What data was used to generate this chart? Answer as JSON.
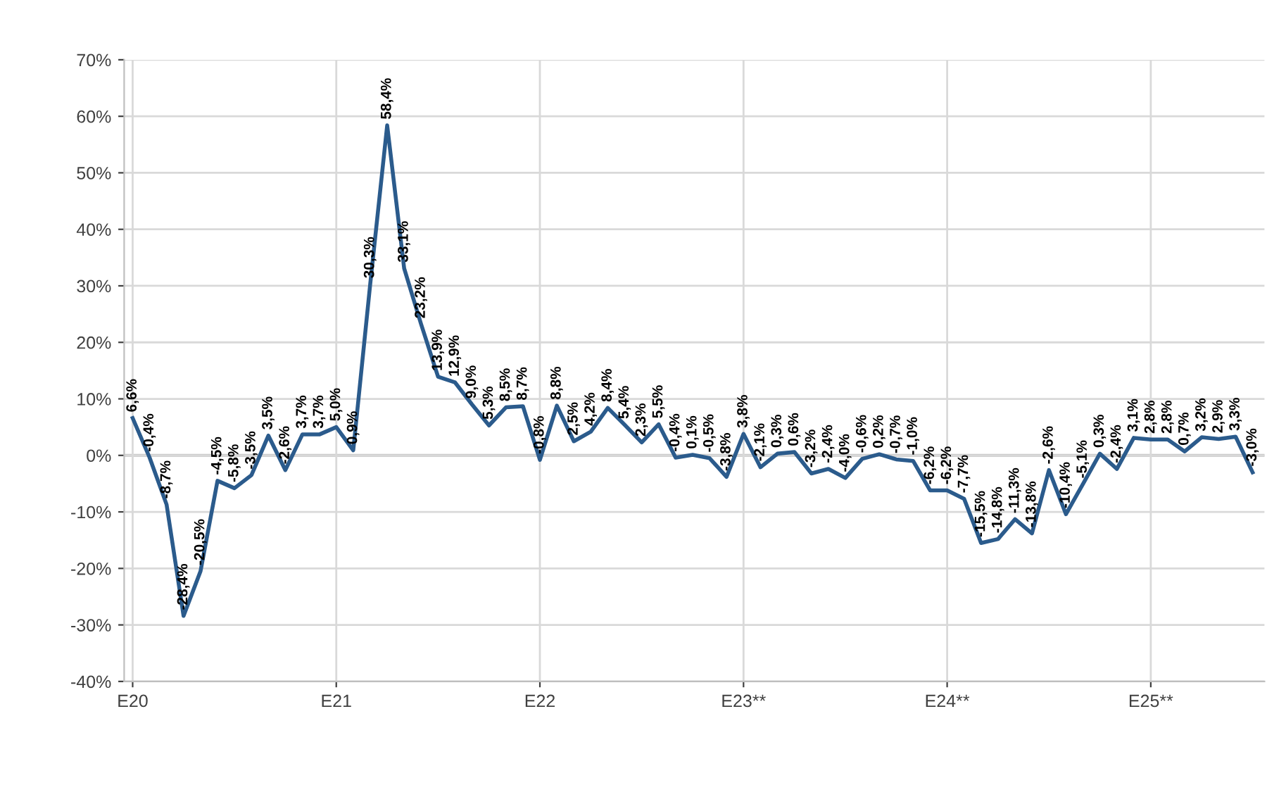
{
  "chart_data": {
    "type": "line",
    "categories": [
      "E20",
      null,
      null,
      null,
      null,
      null,
      null,
      null,
      null,
      null,
      null,
      null,
      "E21",
      null,
      null,
      null,
      null,
      null,
      null,
      null,
      null,
      null,
      null,
      null,
      "E22",
      null,
      null,
      null,
      null,
      null,
      null,
      null,
      null,
      null,
      null,
      null,
      "E23**",
      null,
      null,
      null,
      null,
      null,
      null,
      null,
      null,
      null,
      null,
      null,
      "E24**",
      null,
      null,
      null,
      null,
      null,
      null,
      null,
      null,
      null,
      null,
      null,
      "E25**",
      null,
      null,
      null,
      null,
      null,
      null
    ],
    "series": [
      {
        "color": "#2b5b8c",
        "values": [
          6.6,
          -0.4,
          -8.7,
          -28.4,
          -20.5,
          -4.5,
          -5.8,
          -3.5,
          3.5,
          -2.6,
          3.7,
          3.7,
          5.0,
          0.9,
          30.3,
          58.4,
          33.1,
          23.2,
          13.9,
          12.9,
          9.0,
          5.3,
          8.5,
          8.7,
          -0.8,
          8.8,
          2.5,
          4.2,
          8.4,
          5.4,
          2.3,
          5.5,
          -0.4,
          0.1,
          -0.5,
          -3.8,
          3.8,
          -2.1,
          0.3,
          0.6,
          -3.2,
          -2.4,
          -4.0,
          -0.6,
          0.2,
          -0.7,
          -1.0,
          -6.2,
          -6.2,
          -7.7,
          -15.5,
          -14.8,
          -11.3,
          -13.8,
          -2.6,
          -10.4,
          -5.1,
          0.3,
          -2.4,
          3.1,
          2.8,
          2.8,
          0.7,
          3.2,
          2.9,
          3.3,
          -3.0
        ],
        "value_labels": [
          "6,6%",
          "-0,4%",
          "-8,7%",
          "-28,4%",
          "-20,5%",
          "-4,5%",
          "-5,8%",
          "-3,5%",
          "3,5%",
          "-2,6%",
          "3,7%",
          "3,7%",
          "5,0%",
          "0,9%",
          "30,3%",
          "58,4%",
          "33,1%",
          "23,2%",
          "13,9%",
          "12,9%",
          "9,0%",
          "5,3%",
          "8,5%",
          "8,7%",
          "-0,8%",
          "8,8%",
          "2,5%",
          "4,2%",
          "8,4%",
          "5,4%",
          "2,3%",
          "5,5%",
          "-0,4%",
          "0,1%",
          "-0,5%",
          "-3,8%",
          "3,8%",
          "-2,1%",
          "0,3%",
          "0,6%",
          "-3,2%",
          "-2,4%",
          "-4,0%",
          "-0,6%",
          "0,2%",
          "-0,7%",
          "-1,0%",
          "-6,2%",
          "-6,2%",
          "-7,7%",
          "-15,5%",
          "-14,8%",
          "-11,3%",
          "-13,8%",
          "-2,6%",
          "-10,4%",
          "-5,1%",
          "0,3%",
          "-2,4%",
          "3,1%",
          "2,8%",
          "2,8%",
          "0,7%",
          "3,2%",
          "2,9%",
          "3,3%",
          "-3,0%"
        ]
      }
    ],
    "ylim": [
      -40,
      70
    ],
    "yticks": [
      {
        "value": -40,
        "label": "-40%"
      },
      {
        "value": -30,
        "label": "-30%"
      },
      {
        "value": -20,
        "label": "-20%"
      },
      {
        "value": -10,
        "label": "-10%"
      },
      {
        "value": 0,
        "label": "0%"
      },
      {
        "value": 10,
        "label": "10%"
      },
      {
        "value": 20,
        "label": "20%"
      },
      {
        "value": 30,
        "label": "30%"
      },
      {
        "value": 40,
        "label": "40%"
      },
      {
        "value": 50,
        "label": "50%"
      },
      {
        "value": 60,
        "label": "60%"
      },
      {
        "value": 70,
        "label": "70%"
      }
    ],
    "grid": true,
    "marker": "none",
    "line_style": "solid"
  }
}
